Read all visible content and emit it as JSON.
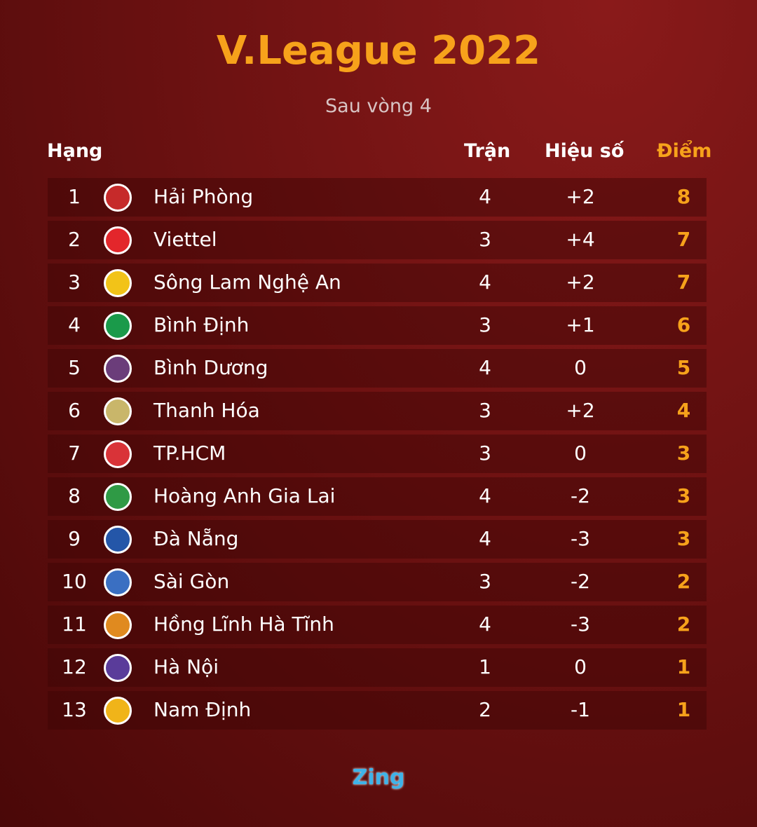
{
  "title": "V.League 2022",
  "subtitle": "Sau vòng 4",
  "headers": {
    "rank": "Hạng",
    "played": "Trận",
    "diff": "Hiệu số",
    "points": "Điểm"
  },
  "colors": {
    "accent": "#f7a21b"
  },
  "rows": [
    {
      "rank": "1",
      "team": "Hải Phòng",
      "played": "4",
      "diff": "+2",
      "points": "8",
      "logo": "#c62a2a"
    },
    {
      "rank": "2",
      "team": "Viettel",
      "played": "3",
      "diff": "+4",
      "points": "7",
      "logo": "#e3262b"
    },
    {
      "rank": "3",
      "team": "Sông Lam Nghệ An",
      "played": "4",
      "diff": "+2",
      "points": "7",
      "logo": "#f2c318"
    },
    {
      "rank": "4",
      "team": "Bình Định",
      "played": "3",
      "diff": "+1",
      "points": "6",
      "logo": "#1a9a4a"
    },
    {
      "rank": "5",
      "team": "Bình Dương",
      "played": "4",
      "diff": "0",
      "points": "5",
      "logo": "#6b3d7a"
    },
    {
      "rank": "6",
      "team": "Thanh Hóa",
      "played": "3",
      "diff": "+2",
      "points": "4",
      "logo": "#c9b66a"
    },
    {
      "rank": "7",
      "team": "TP.HCM",
      "played": "3",
      "diff": "0",
      "points": "3",
      "logo": "#d93338"
    },
    {
      "rank": "8",
      "team": "Hoàng Anh Gia Lai",
      "played": "4",
      "diff": "-2",
      "points": "3",
      "logo": "#2f9a45"
    },
    {
      "rank": "9",
      "team": "Đà Nẵng",
      "played": "4",
      "diff": "-3",
      "points": "3",
      "logo": "#2456a8"
    },
    {
      "rank": "10",
      "team": "Sài Gòn",
      "played": "3",
      "diff": "-2",
      "points": "2",
      "logo": "#3a6fc2"
    },
    {
      "rank": "11",
      "team": "Hồng Lĩnh Hà Tĩnh",
      "played": "4",
      "diff": "-3",
      "points": "2",
      "logo": "#e08a1f"
    },
    {
      "rank": "12",
      "team": "Hà Nội",
      "played": "1",
      "diff": "0",
      "points": "1",
      "logo": "#5a3c9a"
    },
    {
      "rank": "13",
      "team": "Nam Định",
      "played": "2",
      "diff": "-1",
      "points": "1",
      "logo": "#f0b419"
    }
  ],
  "footer": {
    "brand": "Zing"
  }
}
